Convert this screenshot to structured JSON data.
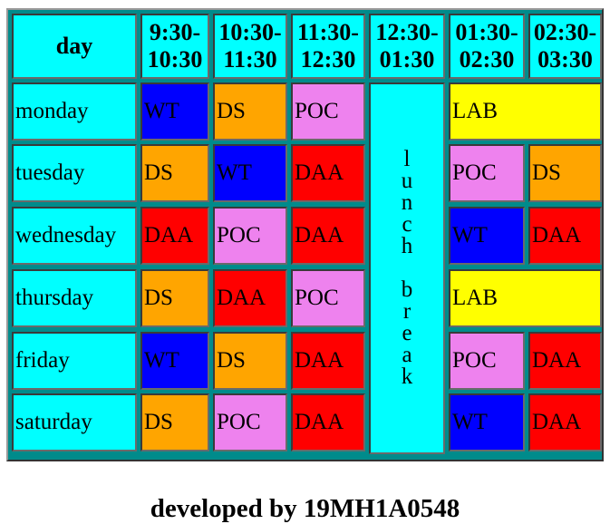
{
  "headers": {
    "day": "day",
    "slots": [
      [
        "9:30-",
        "10:30"
      ],
      [
        "10:30-",
        "11:30"
      ],
      [
        "11:30-",
        "12:30"
      ],
      [
        "12:30-",
        "01:30"
      ],
      [
        "01:30-",
        "02:30"
      ],
      [
        "02:30-",
        "03:30"
      ]
    ]
  },
  "days": [
    "monday",
    "tuesday",
    "wednesday",
    "thursday",
    "friday",
    "saturday"
  ],
  "cells": [
    [
      "WT",
      "DS",
      "POC",
      "LAB",
      ""
    ],
    [
      "DS",
      "WT",
      "DAA",
      "POC",
      "DS"
    ],
    [
      "DAA",
      "POC",
      "DAA",
      "WT",
      "DAA"
    ],
    [
      "DS",
      "DAA",
      "POC",
      "LAB",
      ""
    ],
    [
      "WT",
      "DS",
      "DAA",
      "POC",
      "DAA"
    ],
    [
      "DS",
      "POC",
      "DAA",
      "WT",
      "DAA"
    ]
  ],
  "lunch_letters": [
    "l",
    "u",
    "n",
    "c",
    "h",
    "",
    "b",
    "r",
    "e",
    "a",
    "k"
  ],
  "colors": {
    "WT": "#0000ff",
    "DS": "#ffa500",
    "POC": "#ee82ee",
    "DAA": "#ff0000",
    "LAB": "#ffff00",
    "header": "#00ffff",
    "table_bg": "#008b8b"
  },
  "footer": "developed by 19MH1A0548"
}
